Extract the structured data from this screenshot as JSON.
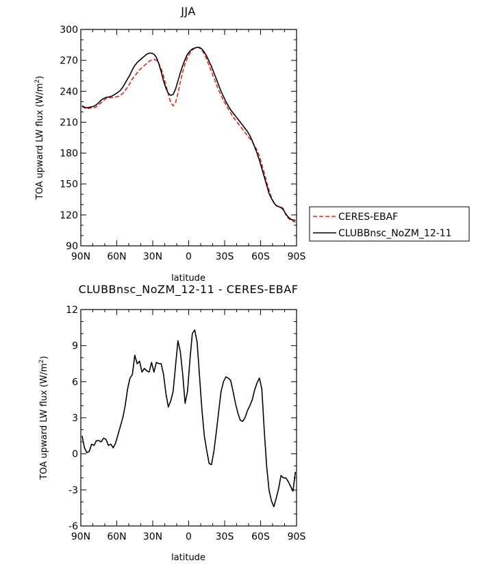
{
  "colors": {
    "ceres": "#e8201a",
    "model": "#000000",
    "frame": "#000000"
  },
  "chart_data": [
    {
      "type": "line",
      "title": "JJA",
      "xlabel": "latitude",
      "ylabel": "TOA upward LW flux (W/m",
      "ylabel_sup": "2",
      "ylabel_close": ")",
      "xlim": [
        90,
        -90
      ],
      "ylim": [
        90,
        300
      ],
      "xticks": [
        {
          "value": 90,
          "label": "90N"
        },
        {
          "value": 60,
          "label": "60N"
        },
        {
          "value": 30,
          "label": "30N"
        },
        {
          "value": 0,
          "label": "0"
        },
        {
          "value": -30,
          "label": "30S"
        },
        {
          "value": -60,
          "label": "60S"
        },
        {
          "value": -90,
          "label": "90S"
        }
      ],
      "yticks": [
        {
          "value": 90,
          "label": "90"
        },
        {
          "value": 120,
          "label": "120"
        },
        {
          "value": 150,
          "label": "150"
        },
        {
          "value": 180,
          "label": "180"
        },
        {
          "value": 210,
          "label": "210"
        },
        {
          "value": 240,
          "label": "240"
        },
        {
          "value": 270,
          "label": "270"
        },
        {
          "value": 300,
          "label": "300"
        }
      ],
      "legend": {
        "position": "right"
      },
      "series": [
        {
          "name": "CERES-EBAF",
          "style": "dashed",
          "color": "#e8201a",
          "x": [
            89,
            87,
            85,
            83,
            81,
            79,
            77,
            75,
            73,
            71,
            69,
            67,
            65,
            63,
            61,
            59,
            57,
            55,
            53,
            51,
            49,
            47,
            45,
            43,
            41,
            39,
            37,
            35,
            33,
            31,
            29,
            27,
            25,
            23,
            21,
            19,
            17,
            15,
            13,
            11,
            9,
            7,
            5,
            3,
            1,
            -1,
            -3,
            -5,
            -7,
            -9,
            -11,
            -13,
            -15,
            -17,
            -19,
            -21,
            -23,
            -25,
            -27,
            -29,
            -31,
            -33,
            -35,
            -37,
            -39,
            -41,
            -43,
            -45,
            -47,
            -49,
            -51,
            -53,
            -55,
            -57,
            -59,
            -61,
            -63,
            -65,
            -67,
            -69,
            -71,
            -73,
            -75,
            -77,
            -79,
            -81,
            -83,
            -85,
            -87,
            -89
          ],
          "y": [
            225,
            224,
            223,
            223.5,
            224,
            224,
            225,
            227,
            229,
            231,
            233,
            233.5,
            234,
            234,
            234.5,
            235,
            236,
            238,
            241,
            244,
            248,
            252,
            255,
            258,
            261,
            263,
            265,
            267,
            269,
            270.5,
            271,
            270,
            267,
            262,
            255,
            246,
            237,
            229,
            226,
            229,
            238,
            249,
            259,
            267,
            273,
            277,
            280,
            282,
            283,
            282,
            280,
            276,
            271,
            265,
            259,
            253,
            247,
            241,
            236,
            231,
            227,
            223,
            219,
            215,
            212,
            209,
            206,
            203,
            200,
            197,
            194,
            191,
            187,
            183,
            177,
            169,
            161,
            152,
            144,
            137,
            132,
            129,
            128.5,
            128,
            126,
            120,
            117,
            115,
            114,
            113
          ]
        },
        {
          "name": "CLUBBnsc_NoZM_12-11",
          "style": "solid",
          "color": "#000000",
          "x": [
            89,
            87,
            85,
            83,
            81,
            79,
            77,
            75,
            73,
            71,
            69,
            67,
            65,
            63,
            61,
            59,
            57,
            55,
            53,
            51,
            49,
            47,
            45,
            43,
            41,
            39,
            37,
            35,
            33,
            31,
            29,
            27,
            25,
            23,
            21,
            19,
            17,
            15,
            13,
            11,
            9,
            7,
            5,
            3,
            1,
            -1,
            -3,
            -5,
            -7,
            -9,
            -11,
            -13,
            -15,
            -17,
            -19,
            -21,
            -23,
            -25,
            -27,
            -29,
            -31,
            -33,
            -35,
            -37,
            -39,
            -41,
            -43,
            -45,
            -47,
            -49,
            -51,
            -53,
            -55,
            -57,
            -59,
            -61,
            -63,
            -65,
            -67,
            -69,
            -71,
            -73,
            -75,
            -77,
            -79,
            -81,
            -83,
            -85,
            -87,
            -89
          ],
          "y": [
            226,
            224.5,
            224,
            224.5,
            225,
            225.5,
            227,
            229,
            231.5,
            233,
            234,
            234.5,
            235,
            236,
            237.5,
            239,
            241,
            244,
            248,
            252,
            256,
            261,
            265,
            268,
            270,
            272,
            274,
            276,
            277,
            277,
            276,
            273,
            267,
            259,
            250,
            243,
            238,
            236,
            237,
            242,
            250,
            258,
            265,
            271,
            276,
            279,
            281,
            282,
            282.5,
            282.5,
            281,
            278,
            274,
            269,
            264,
            258,
            252,
            246,
            240,
            235,
            230,
            226,
            222,
            219,
            216,
            213,
            210,
            207,
            204,
            201,
            197,
            192,
            186,
            180,
            173,
            165,
            157,
            149,
            141,
            136,
            132,
            129,
            128,
            127,
            125,
            121,
            118,
            116,
            115,
            115
          ]
        }
      ]
    },
    {
      "type": "line",
      "title": "CLUBBnsc_NoZM_12-11 - CERES-EBAF",
      "xlabel": "latitude",
      "ylabel": "TOA upward LW flux (W/m",
      "ylabel_sup": "2",
      "ylabel_close": ")",
      "xlim": [
        90,
        -90
      ],
      "ylim": [
        -6,
        12
      ],
      "xticks": [
        {
          "value": 90,
          "label": "90N"
        },
        {
          "value": 60,
          "label": "60N"
        },
        {
          "value": 30,
          "label": "30N"
        },
        {
          "value": 0,
          "label": "0"
        },
        {
          "value": -30,
          "label": "30S"
        },
        {
          "value": -60,
          "label": "60S"
        },
        {
          "value": -90,
          "label": "90S"
        }
      ],
      "yticks": [
        {
          "value": -6,
          "label": "-6"
        },
        {
          "value": -3,
          "label": "-3"
        },
        {
          "value": 0,
          "label": "0"
        },
        {
          "value": 3,
          "label": "3"
        },
        {
          "value": 6,
          "label": "6"
        },
        {
          "value": 9,
          "label": "9"
        },
        {
          "value": 12,
          "label": "12"
        }
      ],
      "series": [
        {
          "style": "solid",
          "color": "#000000",
          "x": [
            89,
            87,
            85,
            83,
            81,
            79,
            77,
            75,
            73,
            71,
            69,
            67,
            65,
            63,
            61,
            59,
            57,
            55,
            53,
            51,
            49,
            47,
            45,
            43,
            41,
            39,
            37,
            35,
            33,
            31,
            29,
            27,
            25,
            23,
            21,
            19,
            17,
            15,
            13,
            11,
            9,
            7,
            5,
            3,
            1,
            -1,
            -3,
            -5,
            -7,
            -9,
            -11,
            -13,
            -15,
            -17,
            -19,
            -21,
            -23,
            -25,
            -27,
            -29,
            -31,
            -33,
            -35,
            -37,
            -39,
            -41,
            -43,
            -45,
            -47,
            -49,
            -51,
            -53,
            -55,
            -57,
            -59,
            -61,
            -63,
            -65,
            -67,
            -69,
            -71,
            -73,
            -75,
            -77,
            -79,
            -81,
            -83,
            -85,
            -87,
            -89
          ],
          "y": [
            1.5,
            0.5,
            0.1,
            0.2,
            0.8,
            0.7,
            1.1,
            1.1,
            1.0,
            1.3,
            1.2,
            0.7,
            0.8,
            0.5,
            0.9,
            1.6,
            2.3,
            3.0,
            4.0,
            5.4,
            6.3,
            6.6,
            8.2,
            7.5,
            7.7,
            6.8,
            7.1,
            6.9,
            6.8,
            7.6,
            6.8,
            7.6,
            7.5,
            7.5,
            6.6,
            5.0,
            3.9,
            4.4,
            5.2,
            7.3,
            9.4,
            8.5,
            6.6,
            4.2,
            5.2,
            7.8,
            10.0,
            10.3,
            9.3,
            6.5,
            3.7,
            1.5,
            0.3,
            -0.8,
            -0.9,
            0.2,
            1.8,
            3.5,
            5.2,
            6.0,
            6.4,
            6.3,
            6.1,
            5.2,
            4.2,
            3.4,
            2.8,
            2.7,
            3.0,
            3.6,
            4.0,
            4.5,
            5.3,
            5.9,
            6.3,
            5.4,
            2.0,
            -1.0,
            -3.0,
            -3.9,
            -4.4,
            -3.7,
            -2.9,
            -1.8,
            -2.0,
            -2.0,
            -2.3,
            -2.7,
            -3.1,
            -1.5
          ]
        }
      ]
    }
  ]
}
